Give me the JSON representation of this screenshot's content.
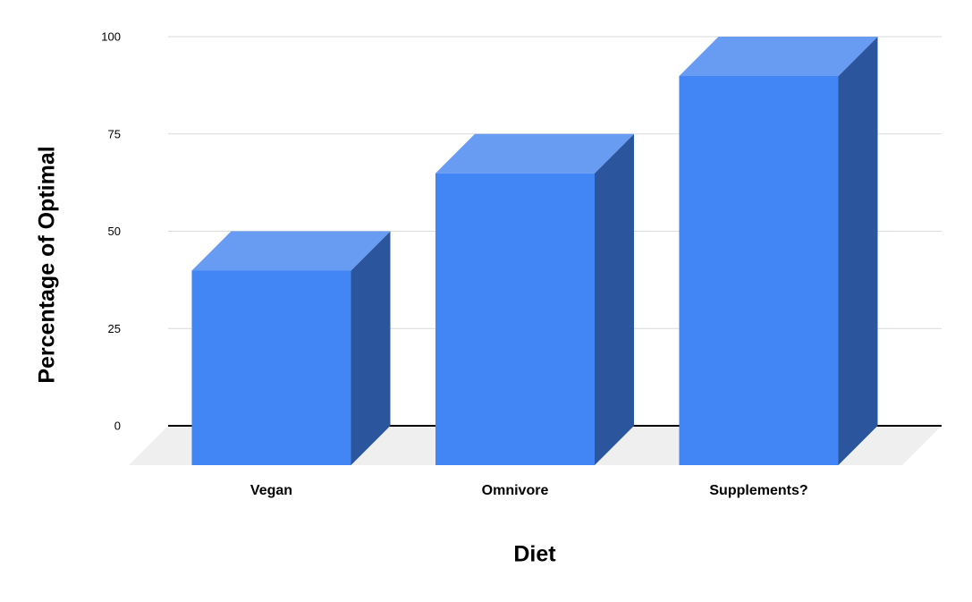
{
  "chart_data": {
    "type": "bar",
    "variant": "3d-column",
    "categories": [
      "Vegan",
      "Omnivore",
      "Supplements?"
    ],
    "values": [
      50,
      75,
      100
    ],
    "xlabel": "Diet",
    "ylabel": "Percentage of Optimal",
    "yticks": [
      0,
      25,
      50,
      75,
      100
    ],
    "ylim": [
      0,
      100
    ],
    "grid": true,
    "legend": "none",
    "colors": {
      "bar_front": "#4285F4",
      "bar_top": "#689CF2",
      "bar_side": "#2B569D",
      "floor": "#EFEFEF",
      "gridline": "#D9D9D9",
      "axis_line": "#000000",
      "text": "#000000"
    }
  }
}
